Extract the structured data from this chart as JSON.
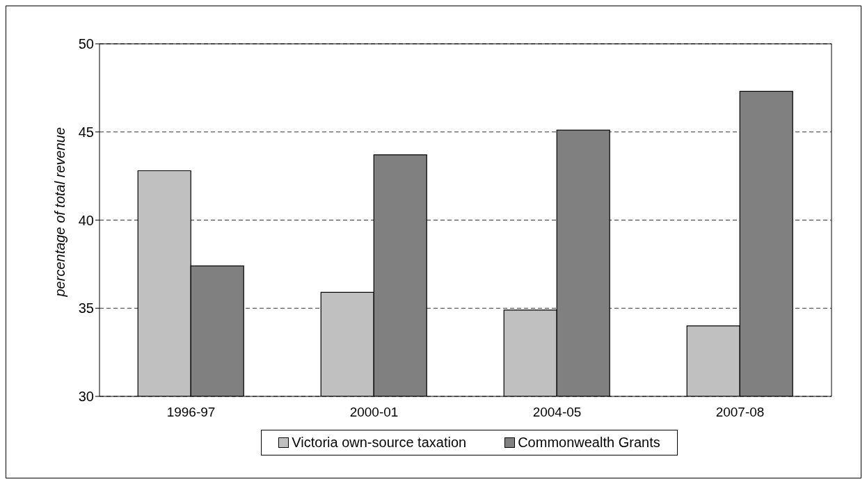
{
  "chart_data": {
    "type": "bar",
    "ylabel": "percentage of total revenue",
    "categories": [
      "1996-97",
      "2000-01",
      "2004-05",
      "2007-08"
    ],
    "series": [
      {
        "name": "Victoria own-source taxation",
        "color": "#c0c0c0",
        "values": [
          42.8,
          35.9,
          34.9,
          34.0
        ]
      },
      {
        "name": "Commonwealth Grants",
        "color": "#808080",
        "values": [
          37.4,
          43.7,
          45.1,
          47.3
        ]
      }
    ],
    "ylim": [
      30,
      50
    ],
    "yticks": [
      30,
      35,
      40,
      45,
      50
    ],
    "grid": "y",
    "legend": "bottom"
  }
}
